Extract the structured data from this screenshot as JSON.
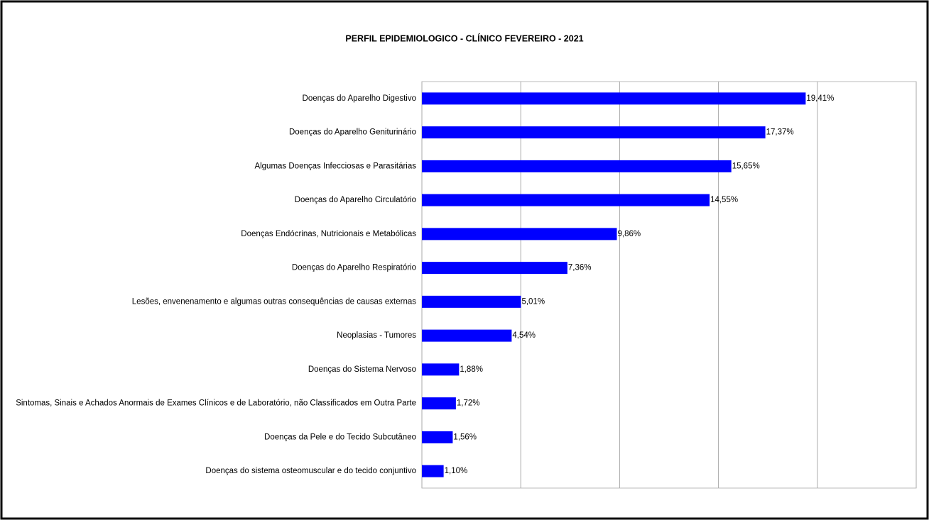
{
  "chart_data": {
    "type": "barh",
    "title": "PERFIL EPIDEMIOLOGICO - CLÍNICO FEVEREIRO - 2021",
    "categories": [
      "Doenças do Aparelho Digestivo",
      "Doenças do Aparelho Geniturinário",
      "Algumas Doenças Infecciosas e Parasitárias",
      "Doenças do Aparelho Circulatório",
      "Doenças Endócrinas, Nutricionais e Metabólicas",
      "Doenças do Aparelho Respiratório",
      "Lesões, envenenamento e algumas outras consequências de causas externas",
      "Neoplasias - Tumores",
      "Doenças do Sistema Nervoso",
      "Sintomas, Sinais e Achados Anormais de Exames Clínicos e de Laboratório, não Classificados em Outra Parte",
      "Doenças da Pele e do Tecido Subcutâneo",
      "Doenças do sistema osteomuscular e do tecido conjuntivo"
    ],
    "values": [
      19.41,
      17.37,
      15.65,
      14.55,
      9.86,
      7.36,
      5.01,
      4.54,
      1.88,
      1.72,
      1.56,
      1.1
    ],
    "value_labels": [
      "19,41%",
      "17,37%",
      "15,65%",
      "14,55%",
      "9,86%",
      "7,36%",
      "5,01%",
      "4,54%",
      "1,88%",
      "1,72%",
      "1,56%",
      "1,10%"
    ],
    "color": "#0000ff",
    "xlim": [
      0,
      25
    ],
    "xticks": [
      0,
      5,
      10,
      15,
      20,
      25
    ],
    "grid": true
  }
}
